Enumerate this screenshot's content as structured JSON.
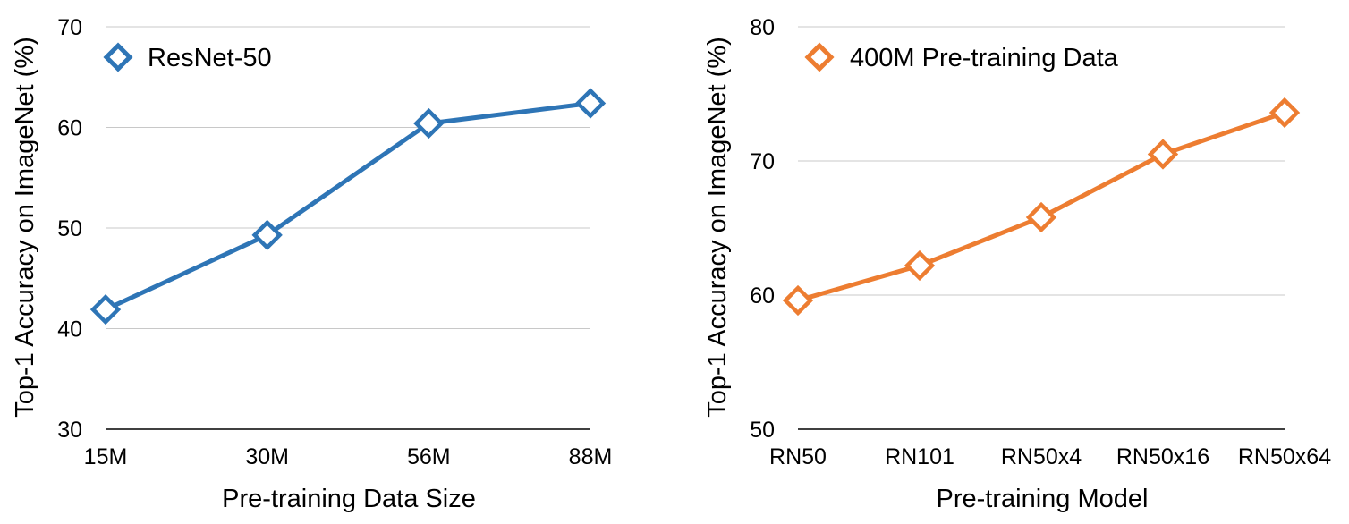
{
  "chart_data": [
    {
      "type": "line",
      "title": "",
      "xlabel": "Pre-training Data Size",
      "ylabel": "Top-1 Accuracy on ImageNet (%)",
      "categories": [
        "15M",
        "30M",
        "56M",
        "88M"
      ],
      "yticks": [
        "30",
        "40",
        "50",
        "60",
        "70"
      ],
      "ylim": [
        30,
        70
      ],
      "grid": true,
      "legend_position": "top-left",
      "color": "#2E75B6",
      "series": [
        {
          "name": "ResNet-50",
          "values": [
            41.9,
            49.3,
            60.4,
            62.4
          ]
        }
      ]
    },
    {
      "type": "line",
      "title": "",
      "xlabel": "Pre-training Model",
      "ylabel": "Top-1 Accuracy on ImageNet (%)",
      "categories": [
        "RN50",
        "RN101",
        "RN50x4",
        "RN50x16",
        "RN50x64"
      ],
      "yticks": [
        "50",
        "60",
        "70",
        "80"
      ],
      "ylim": [
        50,
        80
      ],
      "grid": true,
      "legend_position": "top-left",
      "color": "#ED7D31",
      "series": [
        {
          "name": "400M Pre-training Data",
          "values": [
            59.6,
            62.2,
            65.8,
            70.5,
            73.6
          ]
        }
      ]
    }
  ]
}
